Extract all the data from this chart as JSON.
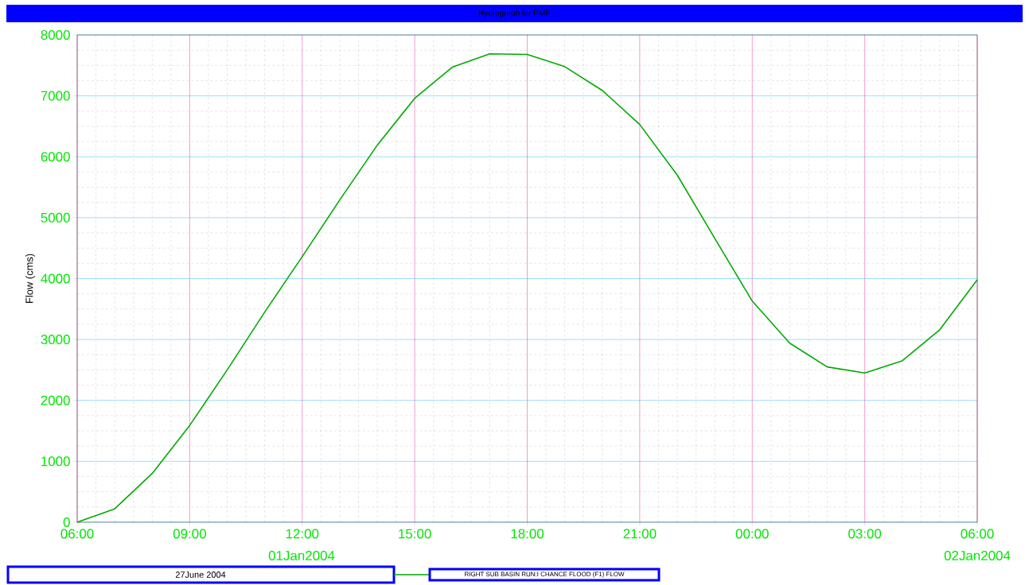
{
  "chart_data": {
    "type": "line",
    "title": "Hydrograph for PMF",
    "ylabel": "Flow (cms)",
    "x": [
      "2004-01-01T06:00",
      "2004-01-01T07:00",
      "2004-01-01T08:00",
      "2004-01-01T09:00",
      "2004-01-01T10:00",
      "2004-01-01T11:00",
      "2004-01-01T12:00",
      "2004-01-01T13:00",
      "2004-01-01T14:00",
      "2004-01-01T15:00",
      "2004-01-01T16:00",
      "2004-01-01T17:00",
      "2004-01-01T18:00",
      "2004-01-01T19:00",
      "2004-01-01T20:00",
      "2004-01-01T21:00",
      "2004-01-01T22:00",
      "2004-01-01T23:00",
      "2004-01-02T00:00",
      "2004-01-02T01:00",
      "2004-01-02T02:00",
      "2004-01-02T03:00",
      "2004-01-02T04:00",
      "2004-01-02T05:00",
      "2004-01-02T06:00"
    ],
    "series": [
      {
        "name": "RIGHT SUB BASIN RUN:I CHANCE FLOOD (F1) FLOW",
        "color": "#00aa00",
        "values": [
          0,
          220,
          800,
          1590,
          2500,
          3450,
          4360,
          5290,
          6190,
          6960,
          7470,
          7690,
          7680,
          7480,
          7090,
          6530,
          5700,
          4660,
          3630,
          2940,
          2550,
          2450,
          2650,
          3160,
          3980
        ]
      }
    ],
    "xlim": [
      "2004-01-01T06:00",
      "2004-01-02T06:00"
    ],
    "ylim": [
      0,
      8000
    ],
    "xticks": [
      {
        "value": "2004-01-01T06:00",
        "label": "06:00"
      },
      {
        "value": "2004-01-01T09:00",
        "label": "09:00"
      },
      {
        "value": "2004-01-01T12:00",
        "label": "12:00"
      },
      {
        "value": "2004-01-01T15:00",
        "label": "15:00"
      },
      {
        "value": "2004-01-01T18:00",
        "label": "18:00"
      },
      {
        "value": "2004-01-01T21:00",
        "label": "21:00"
      },
      {
        "value": "2004-01-02T00:00",
        "label": "00:00"
      },
      {
        "value": "2004-01-02T03:00",
        "label": "03:00"
      },
      {
        "value": "2004-01-02T06:00",
        "label": "06:00"
      }
    ],
    "yticks": [
      0,
      1000,
      2000,
      3000,
      4000,
      5000,
      6000,
      7000,
      8000
    ],
    "annotations": [
      "01Jan2004",
      "02Jan2004",
      "27June 2004"
    ],
    "grid": true,
    "legend": "bottom",
    "marker": "none",
    "line_style": "solid"
  }
}
